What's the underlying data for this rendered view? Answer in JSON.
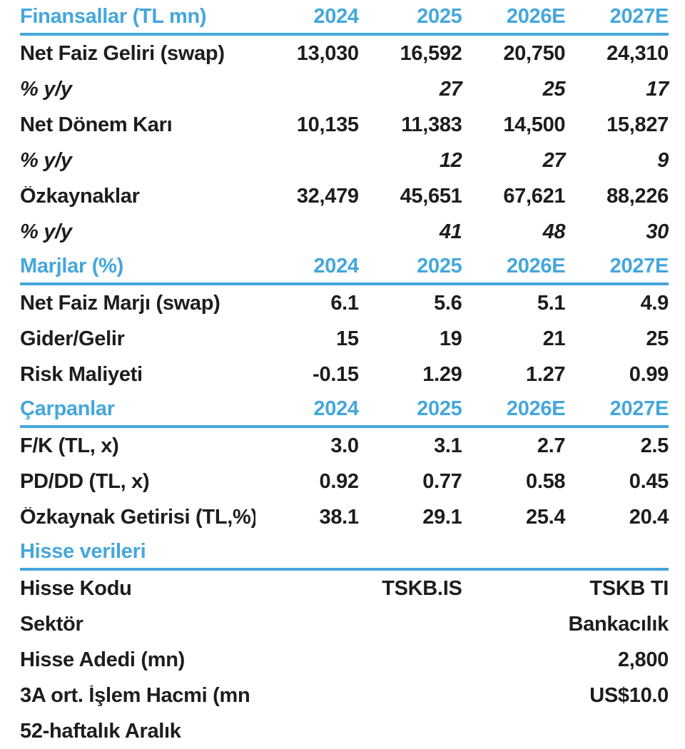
{
  "accent_color": "#44a7dc",
  "text_color": "#1d1d1d",
  "table": {
    "sections": [
      {
        "header": {
          "label": "Finansallar (TL mn)",
          "cols": [
            "2024",
            "2025",
            "2026E",
            "2027E"
          ]
        },
        "rows": [
          {
            "label": "Net Faiz Geliri (swap)",
            "values": [
              "13,030",
              "16,592",
              "20,750",
              "24,310"
            ]
          },
          {
            "label": "% y/y",
            "values": [
              "",
              "27",
              "25",
              "17"
            ]
          },
          {
            "label": "Net Dönem Karı",
            "values": [
              "10,135",
              "11,383",
              "14,500",
              "15,827"
            ]
          },
          {
            "label": "% y/y",
            "values": [
              "",
              "12",
              "27",
              "9"
            ]
          },
          {
            "label": "Özkaynaklar",
            "values": [
              "32,479",
              "45,651",
              "67,621",
              "88,226"
            ]
          },
          {
            "label": "% y/y",
            "values": [
              "",
              "41",
              "48",
              "30"
            ]
          }
        ]
      },
      {
        "header": {
          "label": "Marjlar (%)",
          "cols": [
            "2024",
            "2025",
            "2026E",
            "2027E"
          ]
        },
        "rows": [
          {
            "label": "Net Faiz Marjı (swap)",
            "values": [
              "6.1",
              "5.6",
              "5.1",
              "4.9"
            ]
          },
          {
            "label": "Gider/Gelir",
            "values": [
              "15",
              "19",
              "21",
              "25"
            ]
          },
          {
            "label": "Risk Maliyeti",
            "values": [
              "-0.15",
              "1.29",
              "1.27",
              "0.99"
            ]
          }
        ]
      },
      {
        "header": {
          "label": "Çarpanlar",
          "cols": [
            "2024",
            "2025",
            "2026E",
            "2027E"
          ]
        },
        "rows": [
          {
            "label": "F/K (TL, x)",
            "values": [
              "3.0",
              "3.1",
              "2.7",
              "2.5"
            ]
          },
          {
            "label": "PD/DD (TL, x)",
            "values": [
              "0.92",
              "0.77",
              "0.58",
              "0.45"
            ]
          },
          {
            "label": "Özkaynak Getirisi (TL,%)",
            "values": [
              "38.1",
              "29.1",
              "25.4",
              "20.4"
            ]
          }
        ]
      },
      {
        "header": {
          "label": "Hisse verileri",
          "cols": [
            "",
            "",
            "",
            ""
          ]
        },
        "rows": [
          {
            "label": "Hisse Kodu",
            "values": [
              "",
              "TSKB.IS",
              "",
              "TSKB TI"
            ]
          },
          {
            "label": "Sektör",
            "values": [
              "",
              "",
              "",
              "Bankacılık"
            ]
          },
          {
            "label": "Hisse Adedi (mn)",
            "values": [
              "",
              "",
              "",
              "2,800"
            ]
          },
          {
            "label": "3A ort. İşlem Hacmi (mn",
            "values": [
              "",
              "",
              "",
              "US$10.0"
            ]
          },
          {
            "label": "52-haftalık Aralık",
            "values": [
              "",
              "",
              "",
              ""
            ]
          }
        ]
      }
    ]
  }
}
